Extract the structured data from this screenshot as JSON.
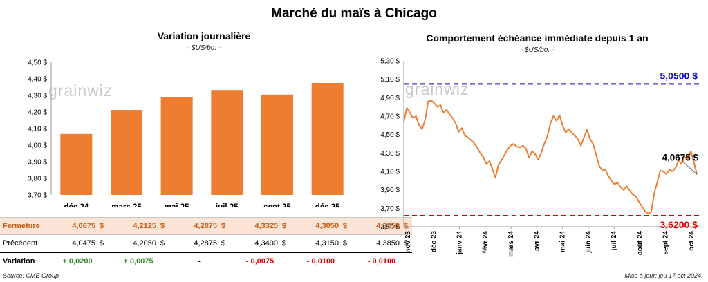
{
  "header": {
    "title": "Marché du maïs à Chicago"
  },
  "watermark": "grainwiz",
  "chart_data": [
    {
      "type": "bar",
      "title": "Variation journalière",
      "subtitle": "- $US/bo. -",
      "categories": [
        "déc 24",
        "mars 25",
        "mai 25",
        "juil 25",
        "sept 25",
        "déc 25"
      ],
      "values": [
        4.0675,
        4.2125,
        4.2875,
        4.3325,
        4.305,
        4.375
      ],
      "ylim": [
        3.7,
        4.5
      ],
      "yticks": [
        "3,70 $",
        "3,80 $",
        "3,90 $",
        "4,00 $",
        "4,10 $",
        "4,20 $",
        "4,30 $",
        "4,40 $",
        "4,50 $"
      ],
      "grid": false,
      "bar_color": "#ed7d31"
    },
    {
      "type": "line",
      "title": "Comportement échéance immédiate depuis 1 an",
      "subtitle": "- $US/bo. -",
      "xticks": [
        "nov 23",
        "déc 23",
        "janv 24",
        "févr 24",
        "mars 24",
        "avr 24",
        "mai 24",
        "juin 24",
        "juil 24",
        "août 24",
        "sept 24",
        "oct 24"
      ],
      "ylim": [
        3.5,
        5.3
      ],
      "yticks": [
        "3,50 $",
        "3,70 $",
        "3,90 $",
        "4,10 $",
        "4,30 $",
        "4,50 $",
        "4,70 $",
        "4,90 $",
        "5,10 $",
        "5,30 $"
      ],
      "max_line": {
        "value": 5.05,
        "label": "5,0500 $",
        "color": "#1010c0"
      },
      "min_line": {
        "value": 3.62,
        "label": "3,6200 $",
        "color": "#e00000"
      },
      "last_label": "4,0675 $",
      "line_color": "#ed7d31",
      "series": [
        {
          "values": [
            4.64,
            4.79,
            4.74,
            4.68,
            4.7,
            4.6,
            4.56,
            4.66,
            4.86,
            4.87,
            4.84,
            4.8,
            4.82,
            4.74,
            4.77,
            4.72,
            4.68,
            4.62,
            4.53,
            4.57,
            4.49,
            4.47,
            4.44,
            4.41,
            4.36,
            4.3,
            4.26,
            4.18,
            4.21,
            4.13,
            4.03,
            4.17,
            4.22,
            4.28,
            4.34,
            4.38,
            4.4,
            4.37,
            4.36,
            4.38,
            4.35,
            4.25,
            4.32,
            4.29,
            4.23,
            4.3,
            4.4,
            4.48,
            4.62,
            4.7,
            4.65,
            4.71,
            4.6,
            4.52,
            4.56,
            4.52,
            4.49,
            4.45,
            4.38,
            4.47,
            4.55,
            4.45,
            4.4,
            4.28,
            4.16,
            4.11,
            4.12,
            4.05,
            4.0,
            3.96,
            3.98,
            3.93,
            3.9,
            3.94,
            3.89,
            3.85,
            3.83,
            3.77,
            3.72,
            3.67,
            3.64,
            3.66,
            3.86,
            3.98,
            4.11,
            4.1,
            4.07,
            4.12,
            4.1,
            4.14,
            4.22,
            4.18,
            4.26,
            4.23,
            4.32,
            4.2,
            4.0675
          ]
        }
      ]
    }
  ],
  "table": {
    "rows": [
      {
        "label": "Fermeture",
        "values": [
          "4,0675",
          "4,2125",
          "4,2875",
          "4,3325",
          "4,3050",
          "4,3750"
        ],
        "currency": "$"
      },
      {
        "label": "Précédent",
        "values": [
          "4,0475",
          "4,2050",
          "4,2875",
          "4,3400",
          "4,3150",
          "4,3850"
        ],
        "currency": "$"
      }
    ],
    "variation": {
      "label": "Variation",
      "values": [
        "+ 0,0200",
        "+ 0,0075",
        "-",
        "- 0,0075",
        "- 0,0100",
        "- 0,0100"
      ],
      "colors": [
        "#2e8b22",
        "#2e8b22",
        "#000000",
        "#e00000",
        "#e00000",
        "#e00000"
      ]
    }
  },
  "footer": {
    "source": "Source: CME Group",
    "updated": "Mise à jour: jeu 17 oct 2024"
  }
}
